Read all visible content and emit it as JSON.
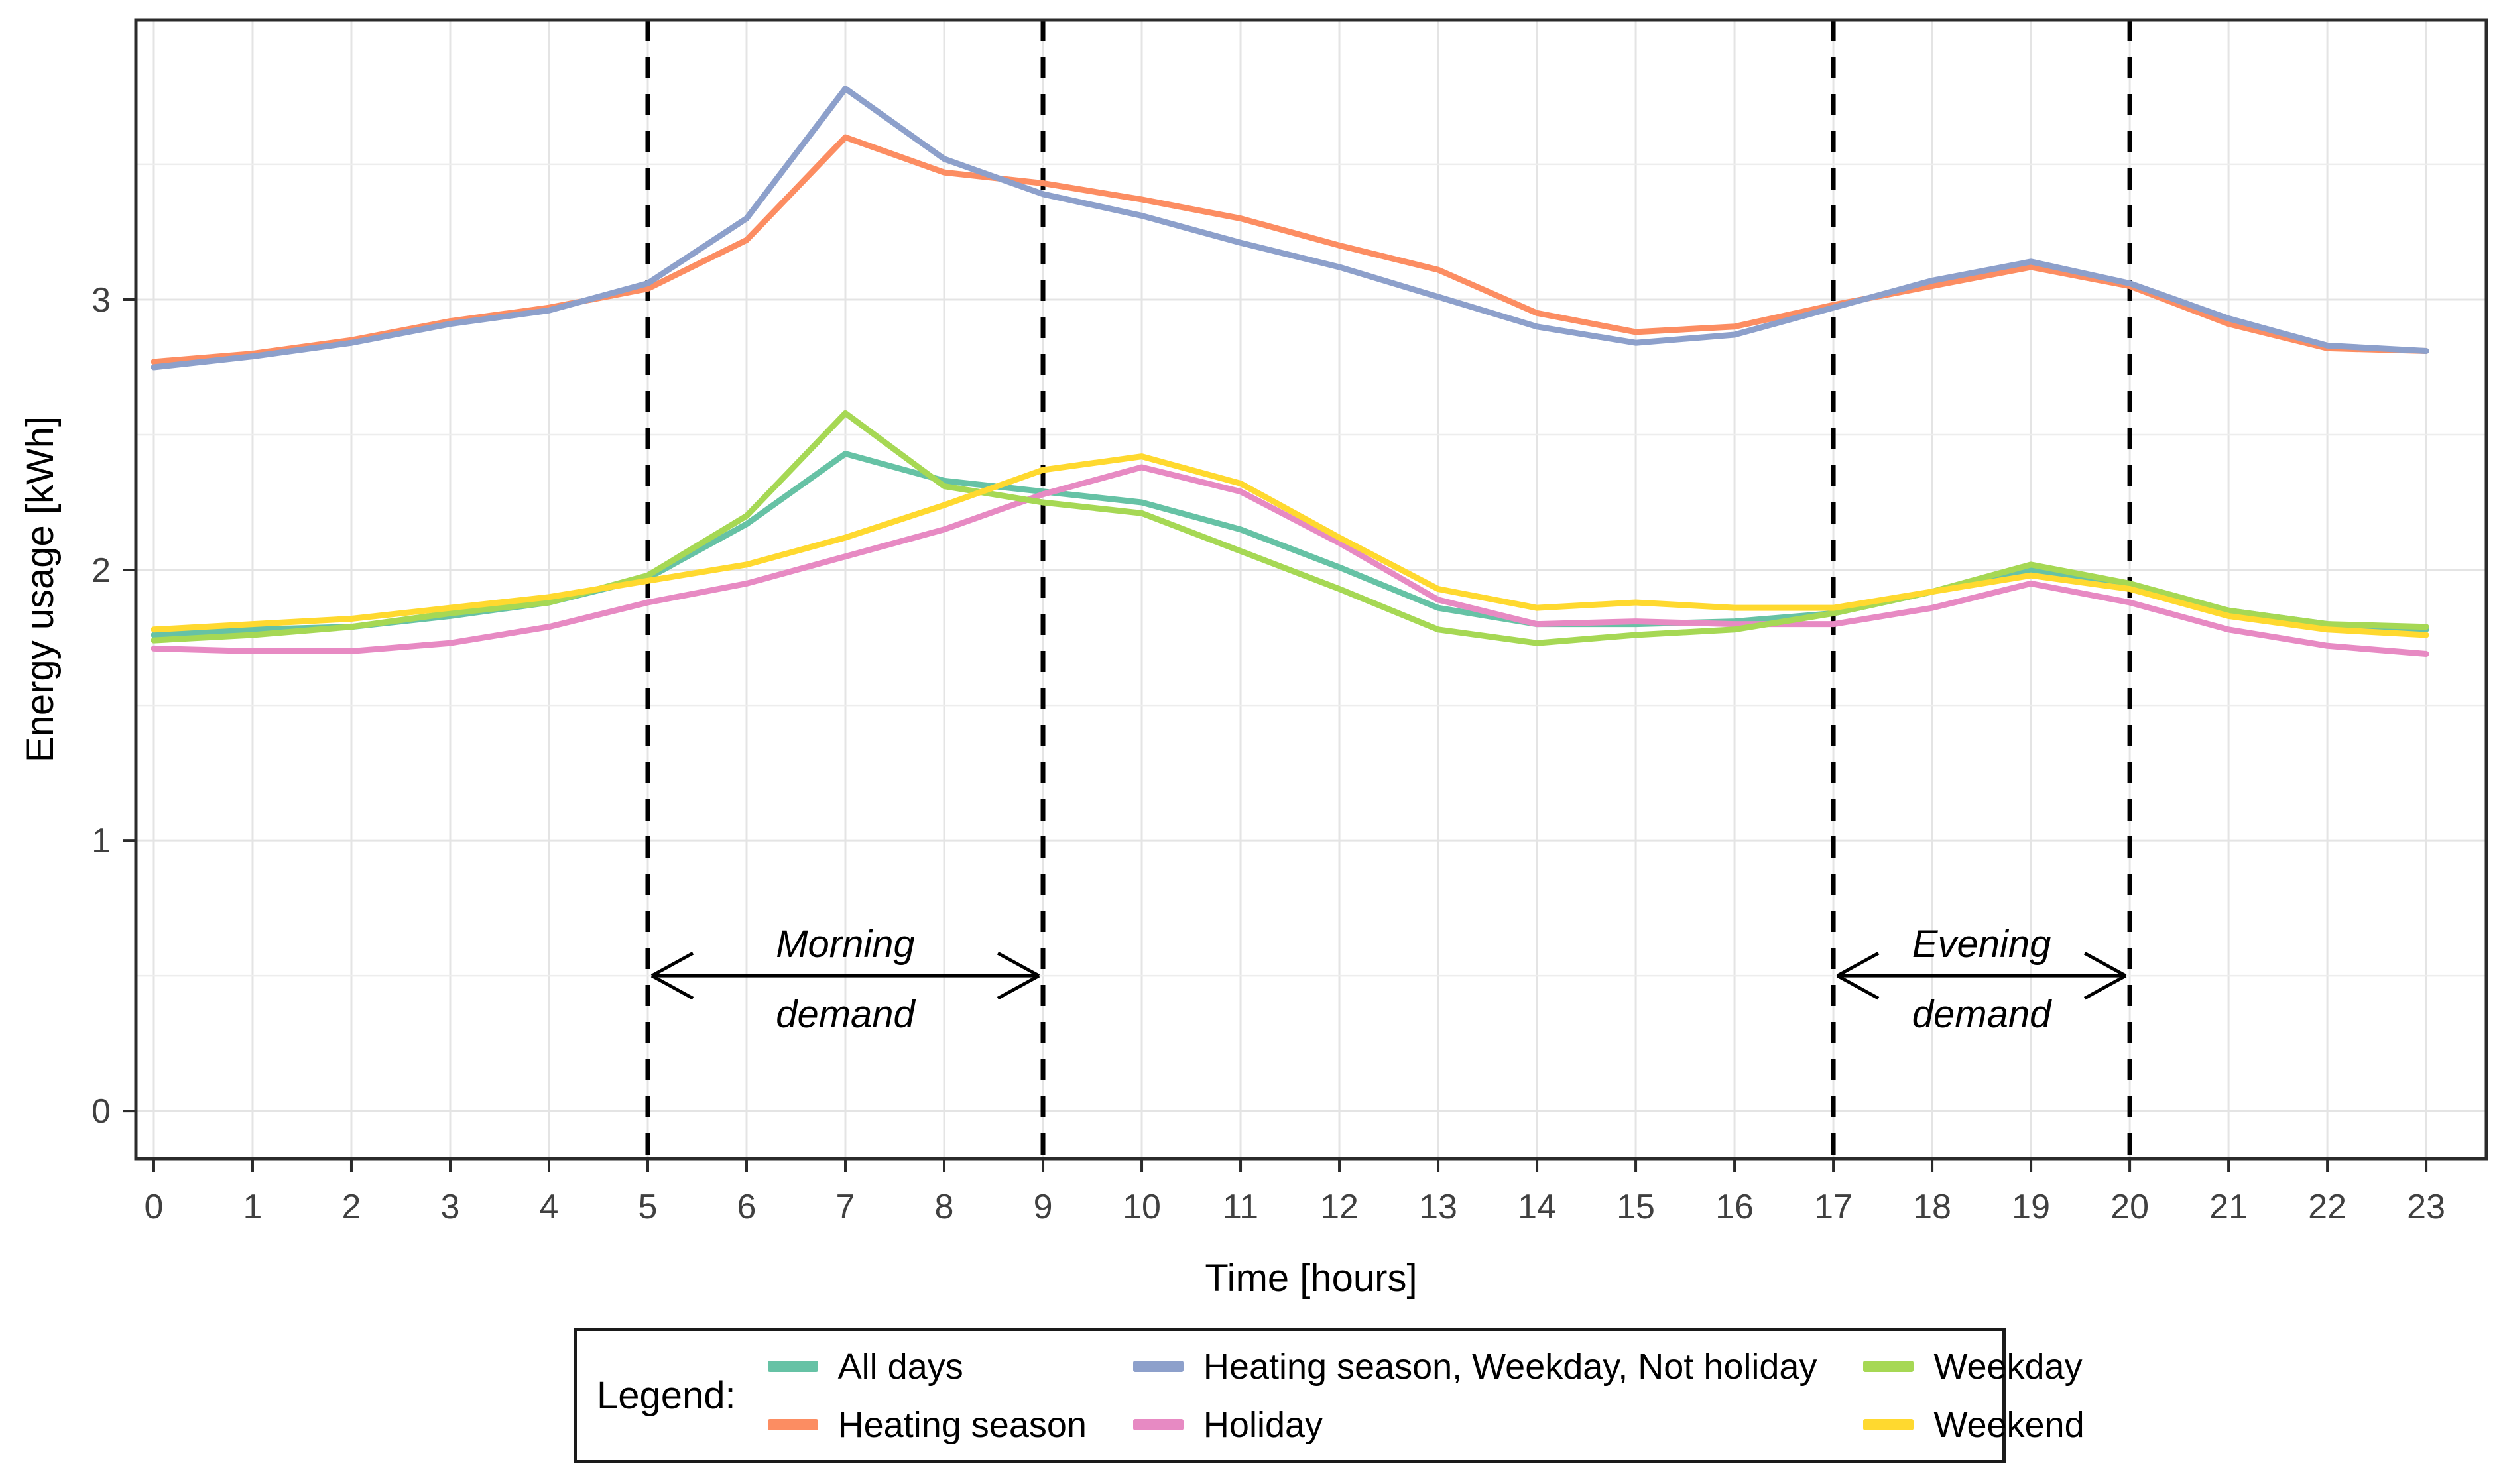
{
  "chart_data": {
    "type": "line",
    "title": "",
    "xlabel": "Time [hours]",
    "ylabel": "Energy usage [kWh]",
    "x": [
      0,
      1,
      2,
      3,
      4,
      5,
      6,
      7,
      8,
      9,
      10,
      11,
      12,
      13,
      14,
      15,
      16,
      17,
      18,
      19,
      20,
      21,
      22,
      23
    ],
    "x_tick_labels": [
      "0",
      "1",
      "2",
      "3",
      "4",
      "5",
      "6",
      "7",
      "8",
      "9",
      "10",
      "11",
      "12",
      "13",
      "14",
      "15",
      "16",
      "17",
      "18",
      "19",
      "20",
      "21",
      "22",
      "23"
    ],
    "y_ticks": [
      0,
      1,
      2,
      3
    ],
    "y_minor_ticks": [
      0.5,
      1.5,
      2.5,
      3.5
    ],
    "xlim": [
      -0.181,
      23.61
    ],
    "ylim": [
      -0.176,
      4.034
    ],
    "grid": "major gridlines at each hour and each kWh, minor horizontal at 0.5 kWh; light gray on white; black panel border",
    "legend_position": "bottom, boxed, 3 columns with title",
    "series": [
      {
        "name": "All days",
        "color": "#66C2A5",
        "values": [
          1.76,
          1.78,
          1.79,
          1.83,
          1.88,
          1.97,
          2.17,
          2.43,
          2.33,
          2.29,
          2.25,
          2.15,
          2.01,
          1.86,
          1.8,
          1.8,
          1.81,
          1.84,
          1.92,
          2.0,
          1.94,
          1.85,
          1.8,
          1.78
        ]
      },
      {
        "name": "Heating season",
        "color": "#FC8D62",
        "values": [
          2.77,
          2.8,
          2.85,
          2.92,
          2.97,
          3.04,
          3.22,
          3.6,
          3.47,
          3.43,
          3.37,
          3.3,
          3.2,
          3.11,
          2.95,
          2.88,
          2.9,
          2.98,
          3.05,
          3.12,
          3.05,
          2.91,
          2.82,
          2.81
        ]
      },
      {
        "name": "Heating season, Weekday, Not holiday",
        "color": "#8DA0CB",
        "values": [
          2.75,
          2.79,
          2.84,
          2.91,
          2.96,
          3.06,
          3.3,
          3.78,
          3.52,
          3.39,
          3.31,
          3.21,
          3.12,
          3.01,
          2.9,
          2.84,
          2.87,
          2.97,
          3.07,
          3.14,
          3.06,
          2.93,
          2.83,
          2.81
        ]
      },
      {
        "name": "Holiday",
        "color": "#E78AC3",
        "values": [
          1.71,
          1.7,
          1.7,
          1.73,
          1.79,
          1.88,
          1.95,
          2.05,
          2.15,
          2.28,
          2.38,
          2.29,
          2.1,
          1.89,
          1.8,
          1.81,
          1.8,
          1.8,
          1.86,
          1.95,
          1.88,
          1.78,
          1.72,
          1.69
        ]
      },
      {
        "name": "Weekday",
        "color": "#A6D854",
        "values": [
          1.74,
          1.76,
          1.79,
          1.84,
          1.88,
          1.98,
          2.2,
          2.58,
          2.31,
          2.25,
          2.21,
          2.07,
          1.93,
          1.78,
          1.73,
          1.76,
          1.78,
          1.84,
          1.92,
          2.02,
          1.95,
          1.85,
          1.8,
          1.79
        ]
      },
      {
        "name": "Weekend",
        "color": "#FFD92F",
        "values": [
          1.78,
          1.8,
          1.82,
          1.86,
          1.9,
          1.96,
          2.02,
          2.12,
          2.24,
          2.37,
          2.42,
          2.32,
          2.12,
          1.93,
          1.86,
          1.88,
          1.86,
          1.86,
          1.92,
          1.98,
          1.93,
          1.83,
          1.78,
          1.76
        ]
      }
    ],
    "vlines": {
      "hours": [
        5,
        9,
        17,
        20
      ],
      "style": "black dashed"
    },
    "annotations": [
      {
        "line1": "Morning",
        "line2": "demand",
        "arrow_from": 5,
        "arrow_to": 9,
        "arrow_y": 0.5
      },
      {
        "line1": "Evening",
        "line2": "demand",
        "arrow_from": 17,
        "arrow_to": 20,
        "arrow_y": 0.5
      }
    ]
  },
  "legend": {
    "title": "Legend:",
    "columns": [
      [
        {
          "label": "All days",
          "color": "#66C2A5"
        },
        {
          "label": "Heating season",
          "color": "#FC8D62"
        }
      ],
      [
        {
          "label": "Heating season, Weekday, Not holiday",
          "color": "#8DA0CB"
        },
        {
          "label": "Holiday",
          "color": "#E78AC3"
        }
      ],
      [
        {
          "label": "Weekday",
          "color": "#A6D854"
        },
        {
          "label": "Weekend",
          "color": "#FFD92F"
        }
      ]
    ]
  },
  "colors": {
    "panel_border": "#2b2b2b",
    "grid_major": "#e4e4e4",
    "grid_minor": "#ededed",
    "tick_label": "#404040",
    "axis_title": "#000000",
    "annotation_text": "#000000",
    "vline": "#000000"
  }
}
